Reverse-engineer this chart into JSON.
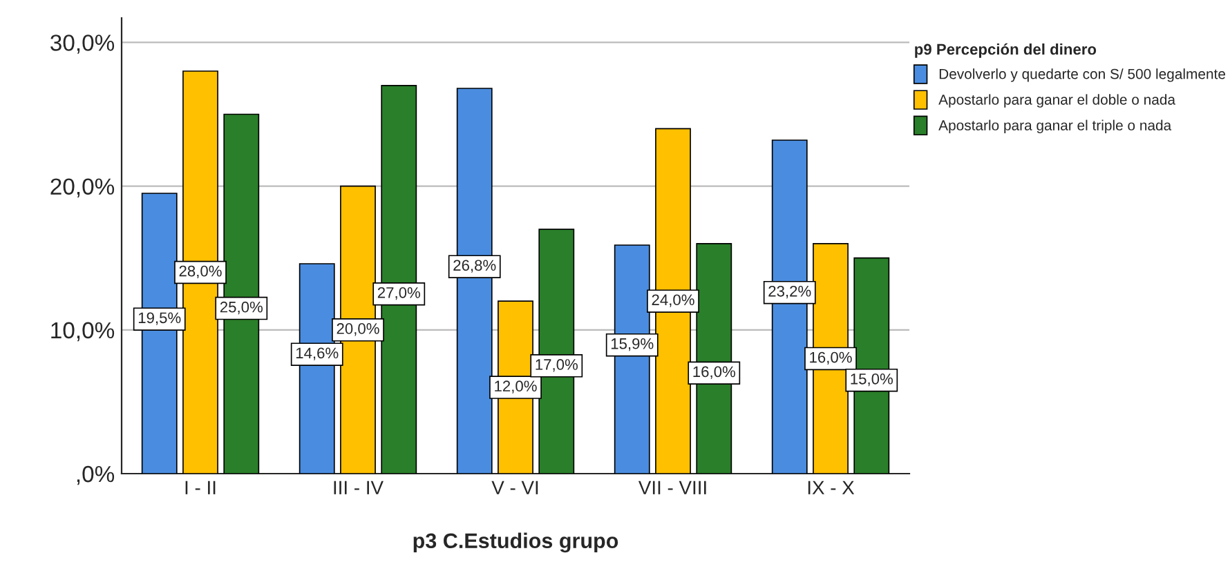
{
  "chart_data": {
    "type": "bar",
    "categories": [
      "I - II",
      "III - IV",
      "V - VI",
      "VII - VIII",
      "IX - X"
    ],
    "series": [
      {
        "name": "Devolverlo y quedarte con S/ 500 legalmente",
        "color": "#4a8de0",
        "values": [
          19.5,
          14.6,
          26.8,
          15.9,
          23.2
        ],
        "value_labels": [
          "19,5%",
          "14,6%",
          "26,8%",
          "15,9%",
          "23,2%"
        ]
      },
      {
        "name": "Apostarlo para ganar el doble o nada",
        "color": "#ffc000",
        "values": [
          28.0,
          20.0,
          12.0,
          24.0,
          16.0
        ],
        "value_labels": [
          "28,0%",
          "20,0%",
          "12,0%",
          "24,0%",
          "16,0%"
        ]
      },
      {
        "name": "Apostarlo para ganar el triple o nada",
        "color": "#2a7f2a",
        "values": [
          25.0,
          27.0,
          17.0,
          16.0,
          15.0
        ],
        "value_labels": [
          "25,0%",
          "27,0%",
          "17,0%",
          "16,0%",
          "15,0%"
        ]
      }
    ],
    "xlabel": "p3 C.Estudios grupo",
    "legend_title": "p9 Percepción del dinero",
    "legend": "top right",
    "ylim": [
      0,
      31.7
    ],
    "yticks": [
      {
        "value": 0,
        "label": ",0%"
      },
      {
        "value": 10,
        "label": "10,0%"
      },
      {
        "value": 20,
        "label": "20,0%"
      },
      {
        "value": 30,
        "label": "30,0%"
      }
    ],
    "grid": "y"
  }
}
